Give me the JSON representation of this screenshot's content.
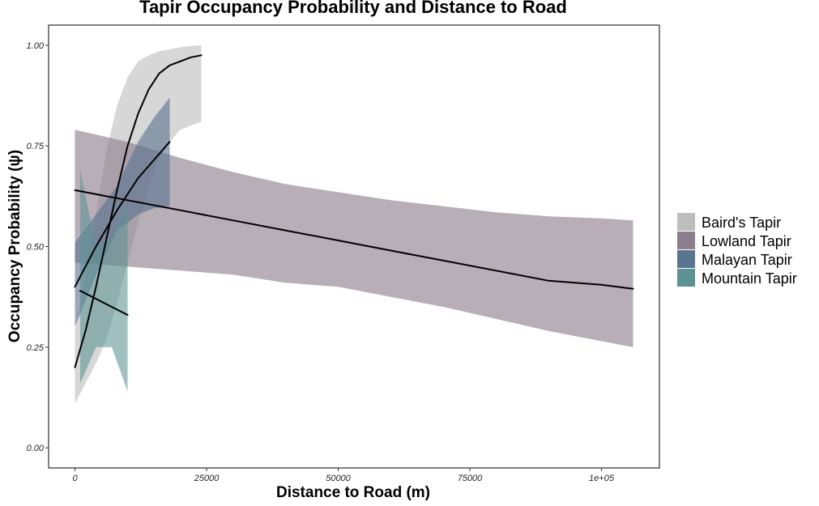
{
  "chart_data": {
    "type": "line",
    "title": "Tapir Occupancy Probability and Distance to Road",
    "xlabel": "Distance to Road (m)",
    "ylabel": "Occupancy Probability (ψ)",
    "xlim": [
      -5000,
      111000
    ],
    "ylim": [
      -0.05,
      1.05
    ],
    "x_ticks": [
      {
        "value": 0,
        "label": "0"
      },
      {
        "value": 25000,
        "label": "25000"
      },
      {
        "value": 50000,
        "label": "50000"
      },
      {
        "value": 75000,
        "label": "75000"
      },
      {
        "value": 100000,
        "label": "1e+05"
      }
    ],
    "y_ticks": [
      {
        "value": 0,
        "label": "0.00"
      },
      {
        "value": 0.25,
        "label": "0.25"
      },
      {
        "value": 0.5,
        "label": "0.50"
      },
      {
        "value": 0.75,
        "label": "0.75"
      },
      {
        "value": 1,
        "label": "1.00"
      }
    ],
    "grid": false,
    "legend_position": "right",
    "series": [
      {
        "name": "Baird's Tapir",
        "color": "#bdbdbd",
        "x": [
          0,
          2000,
          4000,
          6000,
          8000,
          10000,
          12000,
          14000,
          16000,
          18000,
          20000,
          22000,
          24000
        ],
        "y": [
          0.2,
          0.29,
          0.4,
          0.52,
          0.64,
          0.75,
          0.83,
          0.89,
          0.93,
          0.95,
          0.96,
          0.97,
          0.975
        ],
        "lower": [
          0.11,
          0.16,
          0.21,
          0.27,
          0.36,
          0.46,
          0.56,
          0.65,
          0.72,
          0.76,
          0.79,
          0.8,
          0.81
        ],
        "upper": [
          0.29,
          0.43,
          0.58,
          0.74,
          0.85,
          0.92,
          0.96,
          0.975,
          0.985,
          0.99,
          0.995,
          0.998,
          1.0
        ]
      },
      {
        "name": "Lowland Tapir",
        "color": "#8c7d8c",
        "x": [
          0,
          10000,
          20000,
          30000,
          40000,
          50000,
          60000,
          70000,
          80000,
          90000,
          100000,
          106000
        ],
        "y": [
          0.64,
          0.615,
          0.59,
          0.565,
          0.54,
          0.515,
          0.49,
          0.465,
          0.44,
          0.415,
          0.405,
          0.395
        ],
        "lower": [
          0.46,
          0.45,
          0.44,
          0.43,
          0.41,
          0.4,
          0.375,
          0.35,
          0.32,
          0.29,
          0.265,
          0.25
        ],
        "upper": [
          0.79,
          0.76,
          0.72,
          0.685,
          0.655,
          0.635,
          0.615,
          0.6,
          0.585,
          0.575,
          0.57,
          0.565
        ]
      },
      {
        "name": "Malayan Tapir",
        "color": "#5a7590",
        "x": [
          0,
          4000,
          8000,
          12000,
          15000,
          18000
        ],
        "y": [
          0.4,
          0.5,
          0.59,
          0.67,
          0.715,
          0.76
        ],
        "lower": [
          0.3,
          0.43,
          0.54,
          0.58,
          0.595,
          0.6
        ],
        "upper": [
          0.51,
          0.58,
          0.65,
          0.76,
          0.82,
          0.87
        ]
      },
      {
        "name": "Mountain Tapir",
        "color": "#5d9292",
        "x": [
          1000,
          4000,
          7000,
          10000
        ],
        "y": [
          0.39,
          0.37,
          0.35,
          0.33
        ],
        "lower": [
          0.16,
          0.25,
          0.25,
          0.14
        ],
        "upper": [
          0.69,
          0.5,
          0.52,
          0.6
        ]
      }
    ]
  }
}
